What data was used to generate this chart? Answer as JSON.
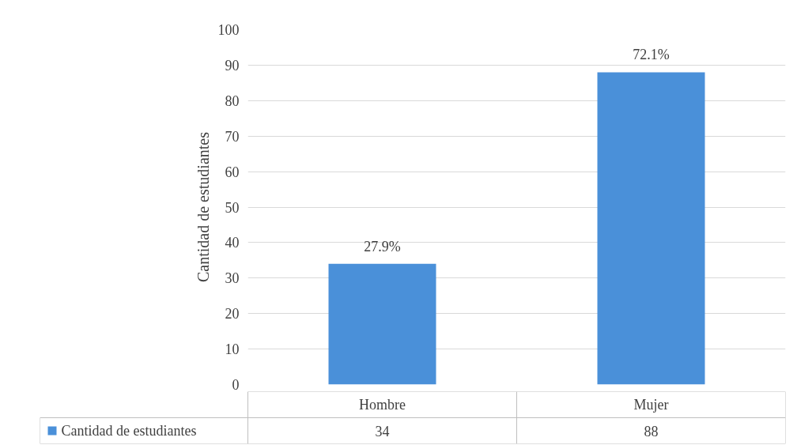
{
  "chart_data": {
    "type": "bar",
    "ylabel": "Cantidad de estudiantes",
    "categories": [
      "Hombre",
      "Mujer"
    ],
    "series": [
      {
        "name": "Cantidad de estudiantes",
        "color": "#4a90d9",
        "values": [
          34,
          88
        ]
      }
    ],
    "annotations": [
      {
        "text": "27.9%",
        "x": "Hombre",
        "y": 34
      },
      {
        "text": "72.1%",
        "x": "Mujer",
        "y": 88
      }
    ],
    "ylim": [
      0,
      100
    ],
    "yticks": [
      0,
      10,
      20,
      30,
      40,
      50,
      60,
      70,
      80,
      90,
      100
    ],
    "grid": "y",
    "data_labels": true,
    "legend": "bottom"
  }
}
